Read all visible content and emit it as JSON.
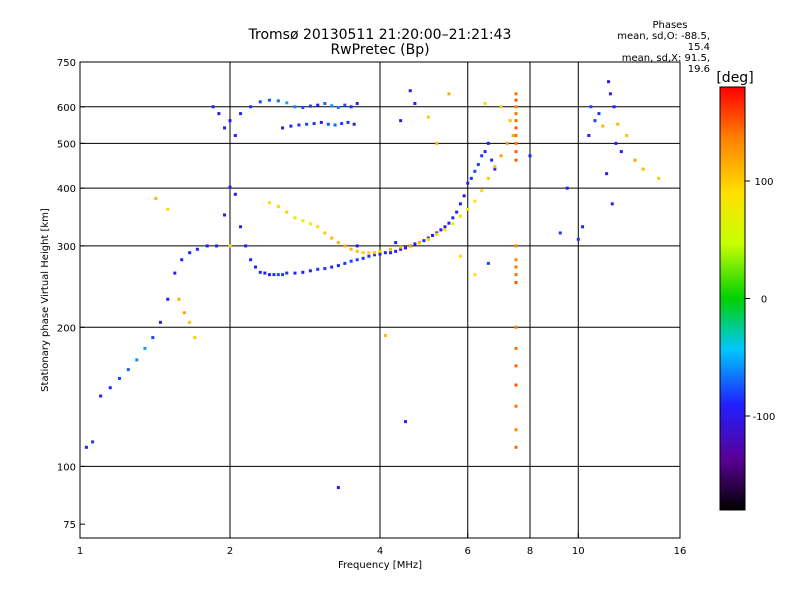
{
  "chart_data": {
    "type": "scatter",
    "title": "Tromsø 20130511 21:20:00–21:21:43",
    "subtitle": "RwPretec (Bp)",
    "xlabel": "Frequency [MHz]",
    "ylabel": "Stationary phase Virtual Height [km]",
    "xscale": "log",
    "yscale": "log",
    "xlim": [
      1,
      16
    ],
    "ylim": [
      70,
      750
    ],
    "x_ticks": [
      "1",
      "2",
      "4",
      "6",
      "8",
      "10",
      "16"
    ],
    "y_ticks": [
      "75",
      "100",
      "200",
      "300",
      "400",
      "500",
      "600",
      "750"
    ],
    "grid": true,
    "stats": {
      "heading": "Phases",
      "o_mode": "mean, sd,O: -88.5, 15.4",
      "x_mode": "mean, sd,X:  91.5, 19.6"
    },
    "colorbar": {
      "label": "[deg]",
      "range": [
        -180,
        180
      ],
      "ticks": [
        "100",
        "0",
        "-100"
      ],
      "tick_values": [
        100,
        0,
        -100
      ]
    },
    "series": [
      {
        "x": [
          1.03,
          1.06,
          1.1,
          1.15,
          1.2,
          1.25,
          1.3,
          1.35,
          1.4,
          1.45,
          1.5,
          1.55,
          1.6,
          1.66,
          1.72,
          1.8,
          1.88,
          1.95,
          2.0,
          2.05,
          2.1,
          2.15,
          2.2,
          2.25,
          2.3,
          2.35,
          2.4,
          2.45,
          2.5,
          2.55,
          2.6,
          2.7,
          2.8,
          2.9,
          3.0,
          3.1,
          3.2,
          3.3,
          3.4,
          3.5,
          3.6,
          3.7,
          3.8,
          3.9,
          4.0,
          4.1,
          4.2,
          4.3,
          4.4,
          4.5,
          4.6,
          4.7,
          4.8,
          4.9,
          5.0,
          5.1,
          5.2,
          5.3,
          5.4,
          5.5,
          5.6,
          5.7,
          5.8,
          5.9,
          6.0,
          6.1,
          6.2,
          6.3,
          6.4,
          6.5,
          6.6,
          6.7,
          6.8
        ],
        "y": [
          110,
          113,
          142,
          148,
          155,
          162,
          170,
          180,
          190,
          205,
          230,
          262,
          280,
          290,
          295,
          300,
          300,
          350,
          402,
          388,
          330,
          300,
          280,
          270,
          263,
          262,
          260,
          260,
          260,
          260,
          262,
          262,
          263,
          265,
          267,
          268,
          270,
          272,
          275,
          278,
          280,
          282,
          285,
          287,
          288,
          290,
          290,
          292,
          295,
          297,
          300,
          303,
          305,
          308,
          312,
          316,
          320,
          325,
          330,
          336,
          345,
          355,
          370,
          385,
          410,
          420,
          435,
          450,
          470,
          480,
          500,
          460,
          440
        ],
        "phase": [
          -90,
          -85,
          -95,
          -90,
          -80,
          -70,
          -60,
          -55,
          -80,
          -90,
          -95,
          -100,
          -95,
          -90,
          -90,
          -92,
          -90,
          -95,
          -100,
          -95,
          -90,
          -92,
          -95,
          -90,
          -88,
          -92,
          -90,
          -85,
          -80,
          -82,
          -85,
          -88,
          -90,
          -88,
          -85,
          -82,
          -88,
          -90,
          -85,
          -80,
          -82,
          -84,
          -86,
          -88,
          -90,
          -90,
          -92,
          -94,
          -95,
          -96,
          -98,
          -95,
          -90,
          -88,
          -92,
          -95,
          -98,
          -100,
          -96,
          -94,
          -92,
          -90,
          -95,
          -100,
          -90,
          -85,
          -80,
          -82,
          -85,
          -88,
          -90,
          -92,
          -95
        ]
      },
      {
        "x": [
          1.42,
          1.5,
          1.58,
          1.62,
          1.66,
          1.7,
          2.0,
          2.4,
          2.5,
          2.6,
          2.7,
          2.8,
          2.9,
          3.0,
          3.1,
          3.2,
          3.3,
          3.4,
          3.5,
          3.6,
          3.7,
          3.8,
          3.9,
          4.0,
          4.2,
          4.4,
          4.6,
          4.8,
          5.0,
          5.2,
          5.4,
          5.6,
          5.8,
          6.0,
          6.2,
          6.4,
          6.6,
          6.8,
          7.0,
          7.2,
          7.4
        ],
        "y": [
          380,
          360,
          230,
          215,
          205,
          190,
          300,
          372,
          365,
          355,
          345,
          340,
          335,
          330,
          320,
          312,
          305,
          300,
          295,
          292,
          290,
          290,
          290,
          292,
          295,
          298,
          300,
          305,
          310,
          318,
          325,
          335,
          348,
          360,
          375,
          395,
          420,
          445,
          470,
          500,
          520
        ],
        "phase": [
          110,
          95,
          115,
          120,
          105,
          100,
          90,
          85,
          95,
          100,
          70,
          60,
          85,
          95,
          100,
          105,
          110,
          115,
          110,
          105,
          100,
          95,
          100,
          105,
          110,
          115,
          120,
          110,
          100,
          95,
          90,
          85,
          80,
          85,
          90,
          95,
          100,
          110,
          120,
          125,
          115
        ]
      },
      {
        "x": [
          2.0,
          2.1,
          2.2,
          2.3,
          2.4,
          2.5,
          2.6,
          2.7,
          2.8,
          2.9,
          3.0,
          3.1,
          3.2,
          3.3,
          3.4,
          3.5,
          3.6,
          2.55,
          2.65,
          2.75,
          2.85,
          2.95,
          3.05,
          3.15,
          3.25,
          3.35,
          3.45,
          3.55,
          1.85,
          1.9,
          1.95,
          2.05
        ],
        "y": [
          560,
          580,
          600,
          615,
          620,
          618,
          612,
          600,
          598,
          602,
          605,
          610,
          603,
          598,
          605,
          600,
          610,
          540,
          545,
          548,
          550,
          552,
          555,
          550,
          548,
          552,
          555,
          550,
          600,
          580,
          540,
          520
        ],
        "phase": [
          -95,
          -90,
          -85,
          -80,
          -75,
          -70,
          -50,
          -60,
          -80,
          -85,
          -90,
          -70,
          -60,
          -65,
          -75,
          -85,
          -90,
          -95,
          -90,
          -85,
          -80,
          -85,
          -90,
          -75,
          -70,
          -80,
          -85,
          -90,
          -95,
          -100,
          -95,
          -90
        ]
      },
      {
        "x": [
          7.5,
          7.5,
          7.5,
          7.5,
          7.5,
          7.5,
          7.5,
          7.5,
          7.5,
          7.5,
          7.5,
          7.5,
          7.5,
          7.5,
          7.5,
          7.5,
          7.5,
          7.5,
          7.5,
          7.5,
          7.5,
          7.5
        ],
        "y": [
          640,
          620,
          600,
          580,
          560,
          540,
          520,
          500,
          480,
          460,
          300,
          280,
          270,
          260,
          250,
          200,
          180,
          165,
          150,
          135,
          120,
          110
        ],
        "phase": [
          140,
          150,
          135,
          140,
          145,
          150,
          138,
          142,
          146,
          150,
          130,
          135,
          140,
          145,
          150,
          138,
          142,
          146,
          150,
          140,
          135,
          145
        ]
      },
      {
        "x": [
          11.5,
          11.6,
          11.8,
          11.0,
          10.8,
          11.2,
          10.5,
          11.9,
          12.2,
          13.0,
          13.5,
          14.5,
          9.5,
          10.2,
          10.0,
          10.6,
          12.0,
          12.5,
          11.4,
          11.7,
          4.4,
          4.6,
          4.7,
          5.0,
          5.2,
          5.5,
          6.5,
          7.0,
          7.3,
          8.0,
          9.2,
          5.8,
          6.2,
          4.3,
          3.6,
          3.3,
          4.5,
          6.6,
          4.1
        ],
        "y": [
          680,
          640,
          600,
          580,
          560,
          545,
          520,
          500,
          480,
          460,
          440,
          420,
          400,
          330,
          310,
          600,
          550,
          520,
          430,
          370,
          560,
          650,
          610,
          570,
          500,
          640,
          610,
          600,
          560,
          470,
          320,
          285,
          260,
          305,
          300,
          90,
          125,
          275,
          192
        ],
        "phase": [
          -95,
          -100,
          -90,
          -85,
          -80,
          110,
          -95,
          -100,
          -90,
          120,
          110,
          100,
          -95,
          -90,
          -85,
          -80,
          110,
          105,
          -100,
          -95,
          -90,
          -95,
          -100,
          100,
          110,
          115,
          95,
          100,
          105,
          -90,
          -85,
          90,
          85,
          -95,
          -90,
          -100,
          -95,
          -80,
          110
        ]
      }
    ]
  }
}
